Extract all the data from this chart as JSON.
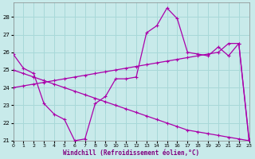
{
  "xlabel": "Windchill (Refroidissement éolien,°C)",
  "bg_color": "#c8eaea",
  "grid_color": "#a8d8d8",
  "line_color": "#aa00aa",
  "xlim": [
    0,
    23
  ],
  "ylim": [
    21,
    28.8
  ],
  "yticks": [
    21,
    22,
    23,
    24,
    25,
    26,
    27,
    28
  ],
  "xticks": [
    0,
    1,
    2,
    3,
    4,
    5,
    6,
    7,
    8,
    9,
    10,
    11,
    12,
    13,
    14,
    15,
    16,
    17,
    18,
    19,
    20,
    21,
    22,
    23
  ],
  "line1_x": [
    0,
    1,
    2,
    3,
    4,
    5,
    6,
    7,
    8,
    9,
    10,
    11,
    12,
    13,
    14,
    15,
    16,
    17,
    18,
    19,
    20,
    21,
    22,
    23
  ],
  "line1_y": [
    25.9,
    25.1,
    24.8,
    23.1,
    22.5,
    22.2,
    21.0,
    21.1,
    23.1,
    23.5,
    24.5,
    24.5,
    24.6,
    27.1,
    27.5,
    28.5,
    27.9,
    26.0,
    25.9,
    25.8,
    26.3,
    25.8,
    26.5,
    21.0
  ],
  "line2_x": [
    0,
    1,
    2,
    3,
    4,
    5,
    6,
    7,
    8,
    9,
    10,
    11,
    12,
    13,
    14,
    15,
    16,
    17,
    18,
    19,
    20,
    21,
    22,
    23
  ],
  "line2_y": [
    24.0,
    24.1,
    24.2,
    24.3,
    24.4,
    24.5,
    24.6,
    24.7,
    24.8,
    24.9,
    25.0,
    25.1,
    25.2,
    25.3,
    25.4,
    25.5,
    25.6,
    25.7,
    25.8,
    25.9,
    26.0,
    26.5,
    26.5,
    21.1
  ],
  "line3_x": [
    0,
    1,
    2,
    3,
    4,
    5,
    6,
    7,
    8,
    9,
    10,
    11,
    12,
    13,
    14,
    15,
    16,
    17,
    18,
    19,
    20,
    21,
    22,
    23
  ],
  "line3_y": [
    25.0,
    24.8,
    24.6,
    24.4,
    24.2,
    24.0,
    23.8,
    23.6,
    23.4,
    23.2,
    23.0,
    22.8,
    22.6,
    22.4,
    22.2,
    22.0,
    21.8,
    21.6,
    21.5,
    21.4,
    21.3,
    21.2,
    21.1,
    21.0
  ]
}
